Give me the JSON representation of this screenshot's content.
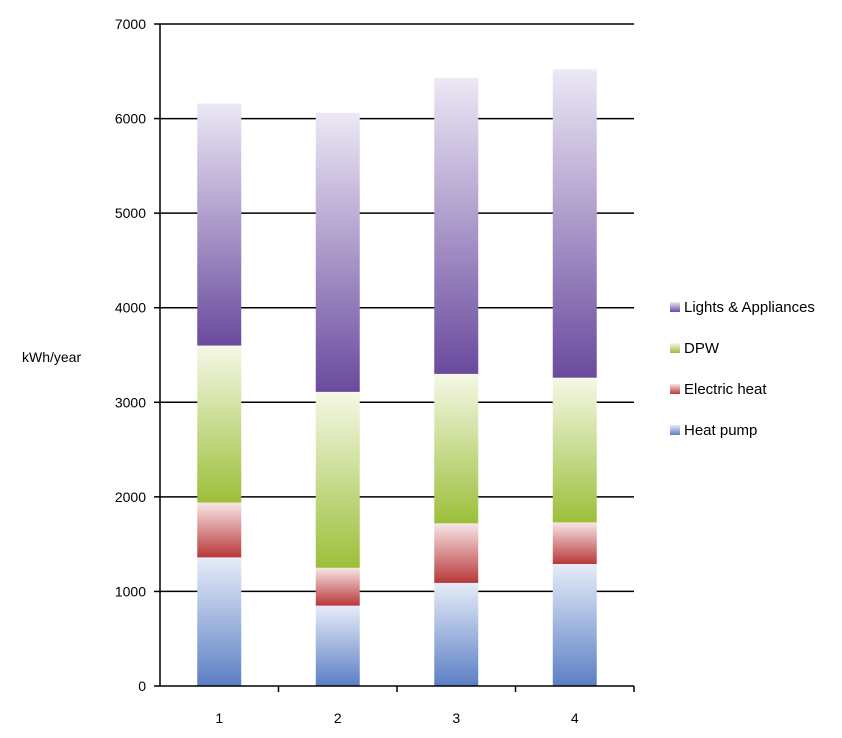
{
  "chart_data": {
    "type": "bar",
    "stacked": true,
    "title": "",
    "xlabel": "",
    "ylabel": "kWh/year",
    "ylim": [
      0,
      7000
    ],
    "yticks": [
      "0",
      "1000",
      "2000",
      "3000",
      "4000",
      "5000",
      "6000",
      "7000"
    ],
    "categories": [
      "1",
      "2",
      "3",
      "4"
    ],
    "grid": true,
    "legend_position": "right",
    "series": [
      {
        "name": "Heat pump",
        "values": [
          1360,
          850,
          1090,
          1290
        ],
        "color_dark": "#5b7fc4",
        "color_light": "#e6ecf8"
      },
      {
        "name": "Electric heat",
        "values": [
          580,
          400,
          630,
          440
        ],
        "color_dark": "#b8383a",
        "color_light": "#f8e6e6"
      },
      {
        "name": "DPW",
        "values": [
          1660,
          1860,
          1580,
          1530
        ],
        "color_dark": "#9cbf3a",
        "color_light": "#f5f8e6"
      },
      {
        "name": "Lights & Appliances",
        "values": [
          2560,
          2950,
          3130,
          3260
        ],
        "color_dark": "#6a4a9e",
        "color_light": "#ece8f5"
      }
    ],
    "legend_order": [
      "Lights & Appliances",
      "DPW",
      "Electric heat",
      "Heat pump"
    ]
  }
}
